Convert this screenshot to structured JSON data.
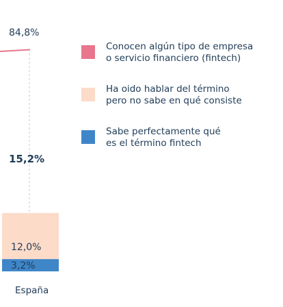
{
  "chart_data": {
    "type": "bar",
    "categories": [
      "España"
    ],
    "top_label": "84,8%",
    "combined_label": "15,2%",
    "series": [
      {
        "name": "Conocen algún tipo  de empresa\no servicio financiero (fintech)",
        "color": "#e8768c"
      },
      {
        "name": "Ha oido hablar del término\npero no sabe en qué consiste",
        "values": [
          12.0
        ],
        "labels": [
          "12,0%"
        ],
        "color": "#fcdbc9"
      },
      {
        "name": "Sabe perfectamente qué\nes el término fintech",
        "values": [
          3.2
        ],
        "labels": [
          "3,2%"
        ],
        "color": "#3f86c8"
      }
    ]
  },
  "colors": {
    "guide": "#c9c9c9",
    "text": "#1f3b57"
  }
}
